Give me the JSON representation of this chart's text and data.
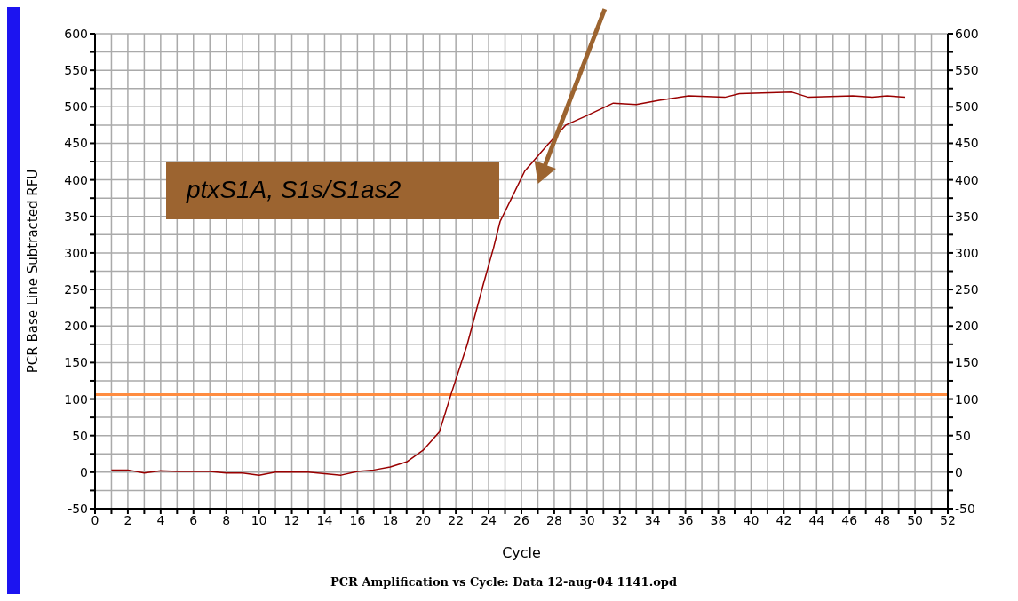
{
  "chart_data": {
    "type": "line",
    "xlabel": "Cycle",
    "ylabel": "PCR Base Line Subtracted RFU",
    "annotations": [
      "ptxS1A, S1s/S1as2",
      "PCR Amplification vs Cycle: Data 12-aug-04 1141.opd"
    ],
    "series": [
      {
        "color": "#990000",
        "x": [
          1,
          2,
          3,
          4,
          5,
          6,
          7,
          8,
          9,
          10,
          11,
          12,
          13,
          14,
          15,
          16,
          17,
          18,
          19,
          20,
          21,
          21.7,
          22.7,
          23.65,
          24.3,
          24.7,
          25.4,
          26.2,
          27.6,
          28.7,
          30,
          31.6,
          33,
          34.4,
          36.2,
          38.4,
          39.3,
          42.5,
          43.5,
          46.2,
          47.4,
          48.3,
          49.4
        ],
        "values": [
          3,
          3,
          -1,
          2,
          1,
          1,
          1,
          -1,
          -1,
          -4,
          0,
          0,
          0,
          -2,
          -4,
          1,
          3,
          7,
          14,
          30,
          55,
          106,
          175,
          255,
          307,
          343,
          375,
          412,
          448,
          475,
          488,
          505,
          503,
          509,
          515,
          513,
          518,
          520,
          513,
          515,
          513,
          515,
          513
        ]
      }
    ],
    "xlim": [
      0,
      52
    ],
    "xticks": [
      0,
      {
        "value": 1,
        "label": null
      },
      2,
      {
        "value": 3,
        "label": null
      },
      4,
      {
        "value": 5,
        "label": null
      },
      6,
      {
        "value": 7,
        "label": null
      },
      8,
      {
        "value": 9,
        "label": null
      },
      10,
      {
        "value": 11,
        "label": null
      },
      12,
      {
        "value": 13,
        "label": null
      },
      14,
      {
        "value": 15,
        "label": null
      },
      16,
      {
        "value": 17,
        "label": null
      },
      18,
      {
        "value": 19,
        "label": null
      },
      20,
      {
        "value": 21,
        "label": null
      },
      22,
      {
        "value": 23,
        "label": null
      },
      24,
      {
        "value": 25,
        "label": null
      },
      26,
      {
        "value": 27,
        "label": null
      },
      28,
      {
        "value": 29,
        "label": null
      },
      30,
      {
        "value": 31,
        "label": null
      },
      32,
      {
        "value": 33,
        "label": null
      },
      34,
      {
        "value": 35,
        "label": null
      },
      36,
      {
        "value": 37,
        "label": null
      },
      38,
      {
        "value": 39,
        "label": null
      },
      40,
      {
        "value": 41,
        "label": null
      },
      42,
      {
        "value": 43,
        "label": null
      },
      44,
      {
        "value": 45,
        "label": null
      },
      46,
      {
        "value": 47,
        "label": null
      },
      48,
      {
        "value": 49,
        "label": null
      },
      50,
      {
        "value": 51,
        "label": null
      },
      52
    ],
    "ylim": [
      -50,
      600
    ],
    "yticks": [
      -50,
      {
        "value": -25,
        "label": null
      },
      0,
      {
        "value": 25,
        "label": null
      },
      50,
      {
        "value": 75,
        "label": null
      },
      100,
      {
        "value": 125,
        "label": null
      },
      150,
      {
        "value": 175,
        "label": null
      },
      200,
      {
        "value": 225,
        "label": null
      },
      250,
      {
        "value": 275,
        "label": null
      },
      300,
      {
        "value": 325,
        "label": null
      },
      350,
      {
        "value": 375,
        "label": null
      },
      400,
      {
        "value": 425,
        "label": null
      },
      450,
      {
        "value": 475,
        "label": null
      },
      500,
      {
        "value": 525,
        "label": null
      },
      550,
      {
        "value": 575,
        "label": null
      },
      600
    ],
    "y2lim": [
      -50,
      600
    ],
    "y2ticks": [
      -50,
      {
        "value": -25,
        "label": null
      },
      0,
      {
        "value": 25,
        "label": null
      },
      50,
      {
        "value": 75,
        "label": null
      },
      100,
      {
        "value": 125,
        "label": null
      },
      150,
      {
        "value": 175,
        "label": null
      },
      200,
      {
        "value": 225,
        "label": null
      },
      250,
      {
        "value": 275,
        "label": null
      },
      300,
      {
        "value": 325,
        "label": null
      },
      350,
      {
        "value": 375,
        "label": null
      },
      400,
      {
        "value": 425,
        "label": null
      },
      450,
      {
        "value": 475,
        "label": null
      },
      500,
      {
        "value": 525,
        "label": null
      },
      550,
      {
        "value": 575,
        "label": null
      },
      600
    ],
    "ref_lines": [
      {
        "axis": "y",
        "value": 106,
        "color": "#ff8c40"
      }
    ],
    "grid": true,
    "marker": "none",
    "line_style": "solid"
  }
}
